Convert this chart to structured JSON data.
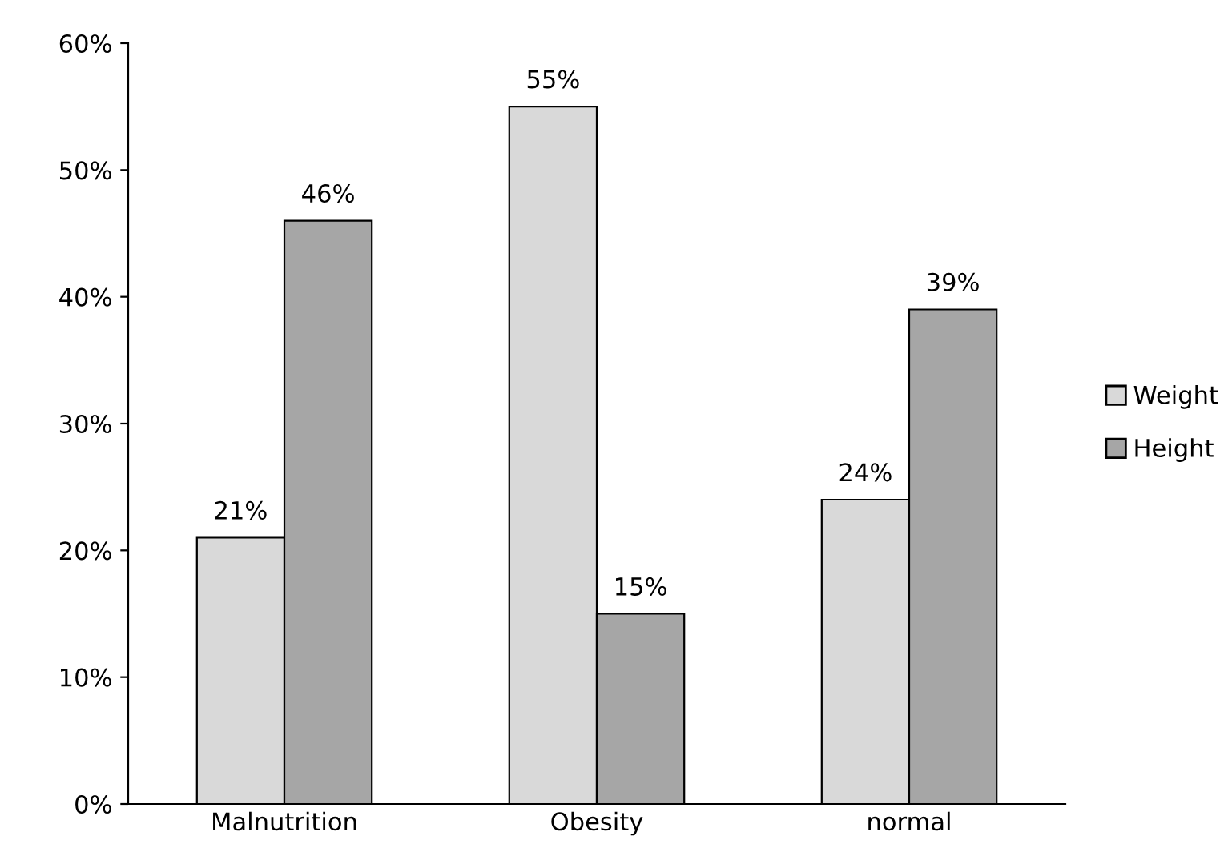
{
  "chart_data": {
    "type": "bar",
    "categories": [
      "Malnutrition",
      "Obesity",
      "normal"
    ],
    "series": [
      {
        "name": "Weight",
        "color": "#d9d9d9",
        "values": [
          21,
          55,
          24
        ],
        "value_labels": [
          "21%",
          "55%",
          "24%"
        ]
      },
      {
        "name": "Height",
        "color": "#a6a6a6",
        "values": [
          46,
          15,
          39
        ],
        "value_labels": [
          "46%",
          "15%",
          "39%"
        ]
      }
    ],
    "ylim": [
      0,
      60
    ],
    "yticks": [
      {
        "value": 0,
        "label": "0%"
      },
      {
        "value": 10,
        "label": "10%"
      },
      {
        "value": 20,
        "label": "20%"
      },
      {
        "value": 30,
        "label": "30%"
      },
      {
        "value": 40,
        "label": "40%"
      },
      {
        "value": 50,
        "label": "50%"
      },
      {
        "value": 60,
        "label": "60%"
      }
    ],
    "grid": false,
    "legend": "right"
  }
}
